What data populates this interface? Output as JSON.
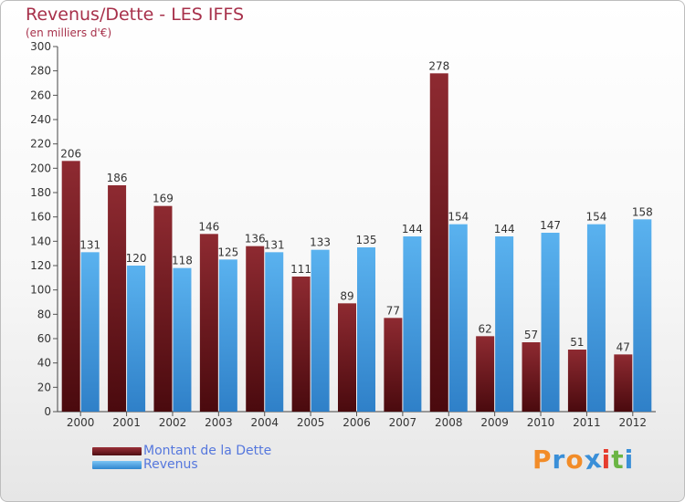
{
  "header": {
    "title": "Revenus/Dette - LES IFFS",
    "subtitle": "(en milliers d'€)"
  },
  "legend": {
    "items": [
      {
        "label": "Montant de la Dette",
        "color": "#6b1a1f"
      },
      {
        "label": "Revenus",
        "color": "#4aa3e8"
      }
    ]
  },
  "logo": {
    "letters": [
      "P",
      "r",
      "o",
      "x",
      "i",
      "t",
      "i"
    ],
    "colors": [
      "#f28c28",
      "#3a8fd8",
      "#f28c28",
      "#3a8fd8",
      "#e63c2e",
      "#6bb544",
      "#3a8fd8"
    ]
  },
  "chart_data": {
    "type": "bar",
    "categories": [
      "2000",
      "2001",
      "2002",
      "2003",
      "2004",
      "2005",
      "2006",
      "2007",
      "2008",
      "2009",
      "2010",
      "2011",
      "2012"
    ],
    "series": [
      {
        "name": "Montant de la Dette",
        "values": [
          206,
          186,
          169,
          146,
          136,
          111,
          89,
          77,
          278,
          62,
          57,
          51,
          47
        ],
        "color": "#6b1a1f"
      },
      {
        "name": "Revenus",
        "values": [
          131,
          120,
          118,
          125,
          131,
          133,
          135,
          144,
          154,
          144,
          147,
          154,
          158
        ],
        "color": "#4aa3e8"
      }
    ],
    "ylim": [
      0,
      300
    ],
    "yticks": [
      0,
      20,
      40,
      60,
      80,
      100,
      120,
      140,
      160,
      180,
      200,
      220,
      240,
      260,
      280,
      300
    ],
    "grid": false,
    "legend_position": "bottom-left",
    "xlabel": "",
    "ylabel": ""
  }
}
